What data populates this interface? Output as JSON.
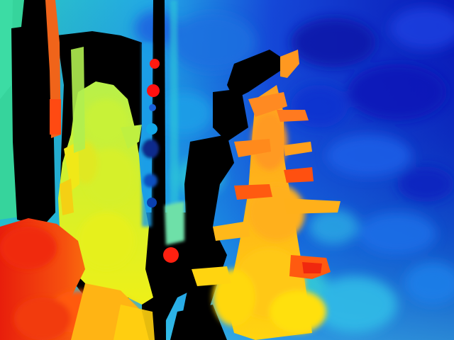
{
  "image": {
    "kind": "depth-map",
    "colormap": "jet",
    "colormap_stops": [
      "#00007f",
      "#0000ff",
      "#0080ff",
      "#00ffff",
      "#80ff80",
      "#ffff00",
      "#ff8000",
      "#ff0000",
      "#7f0000"
    ],
    "invalid_color": "#000000",
    "regions": {
      "background_far": "#0a1ccf",
      "background_mid": "#1a6be0",
      "background_near": "#2bb4e6",
      "left_wall": "#33d39a",
      "left_tree_top": "#c6f23c",
      "left_tree_bottom": "#e4f01a",
      "right_tree": "#ffb11a",
      "foreground_left": "#f23a10",
      "branch_red": "#ff5a10",
      "thin_pole": "#f0641a"
    }
  }
}
